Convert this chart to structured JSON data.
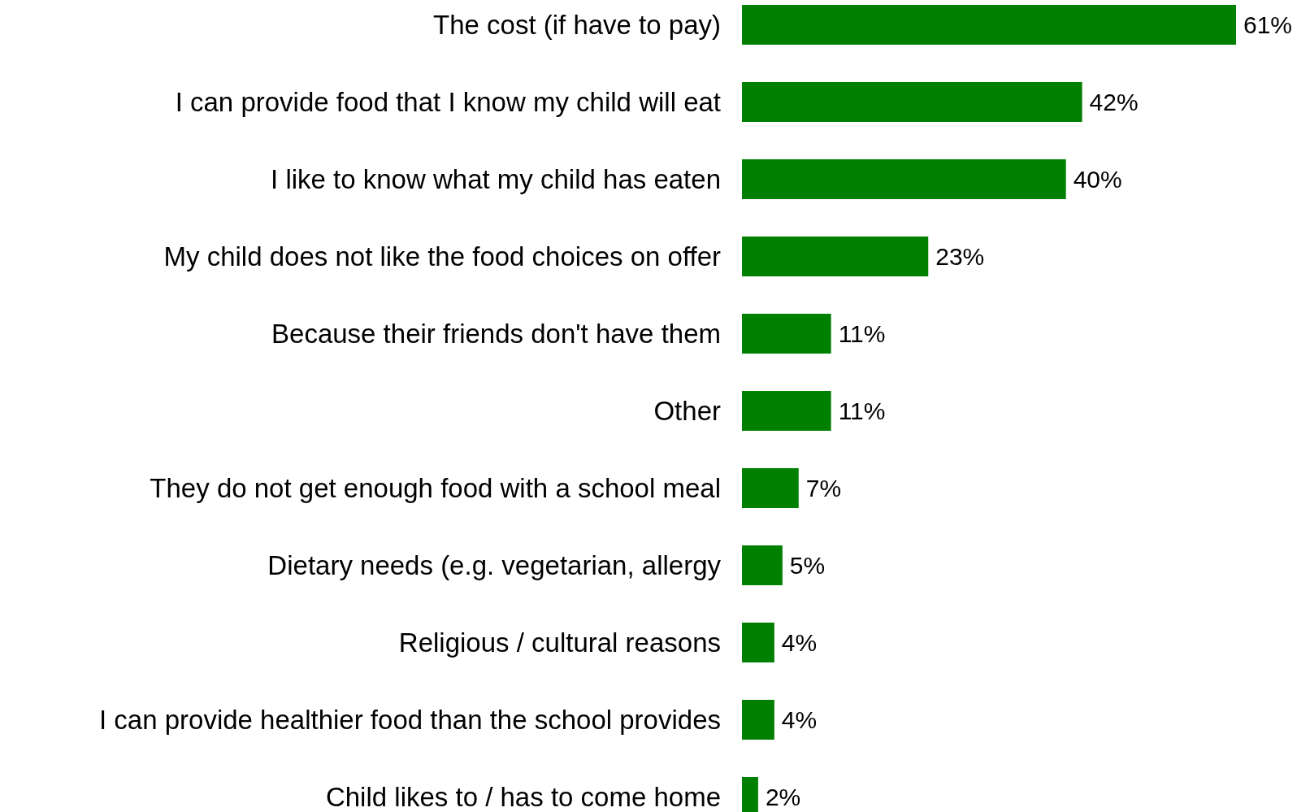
{
  "chart_data": {
    "type": "bar",
    "orientation": "horizontal",
    "categories": [
      "The cost (if have to pay)",
      "I can provide food that I know my child will eat",
      "I like to know what my child has eaten",
      "My child does not like the food choices on offer",
      "Because their friends don't have them",
      "Other",
      "They do not get enough food with a school meal",
      "Dietary needs (e.g. vegetarian, allergy",
      "Religious / cultural reasons",
      "I can provide healthier food than the school provides",
      "Child likes to / has to come home"
    ],
    "values": [
      61,
      42,
      40,
      23,
      11,
      11,
      7,
      5,
      4,
      4,
      2
    ],
    "value_labels": [
      "61%",
      "42%",
      "40%",
      "23%",
      "11%",
      "11%",
      "7%",
      "5%",
      "4%",
      "4%",
      "2%"
    ],
    "color": "#008000"
  }
}
